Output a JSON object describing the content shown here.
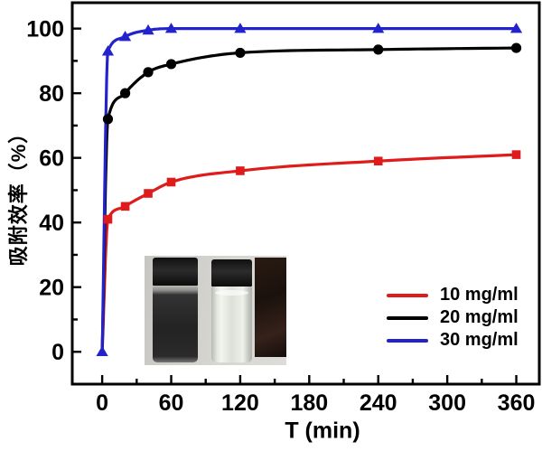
{
  "chart_data": {
    "type": "line",
    "title": "",
    "xlabel": "T (min)",
    "ylabel": "吸附效率（%）",
    "xlim": [
      -26,
      380
    ],
    "ylim": [
      -10,
      108
    ],
    "x_major_ticks": [
      0,
      60,
      120,
      180,
      240,
      300,
      360
    ],
    "x_minor_ticks": [
      30,
      90,
      150,
      210,
      270,
      330
    ],
    "y_major_ticks": [
      0,
      20,
      40,
      60,
      80,
      100
    ],
    "y_minor_ticks": [
      10,
      30,
      50,
      70,
      90
    ],
    "grid": "off",
    "legend_position": "bottom-right",
    "x": [
      0,
      5,
      20,
      40,
      60,
      120,
      240,
      360
    ],
    "series": [
      {
        "name": "10 mg/ml",
        "color": "#df1b1b",
        "marker": "square",
        "values": [
          0,
          41,
          45,
          49,
          52.5,
          56,
          59,
          61
        ],
        "markers_start_at_x_index": 1
      },
      {
        "name": "20 mg/ml",
        "color": "#000000",
        "marker": "circle",
        "values": [
          0,
          72,
          80,
          86.5,
          89,
          92.5,
          93.5,
          94
        ],
        "markers_start_at_x_index": 1
      },
      {
        "name": "30 mg/ml",
        "color": "#2323cb",
        "marker": "triangle-up",
        "values": [
          0,
          93,
          97.5,
          99.5,
          100,
          100,
          100,
          100
        ],
        "markers_start_at_x_index": 0
      }
    ]
  },
  "inset_photo": {
    "left_vial": "dark dispersion before adsorption",
    "right_vial": "clear solution after adsorption",
    "right_object": "magnet"
  }
}
